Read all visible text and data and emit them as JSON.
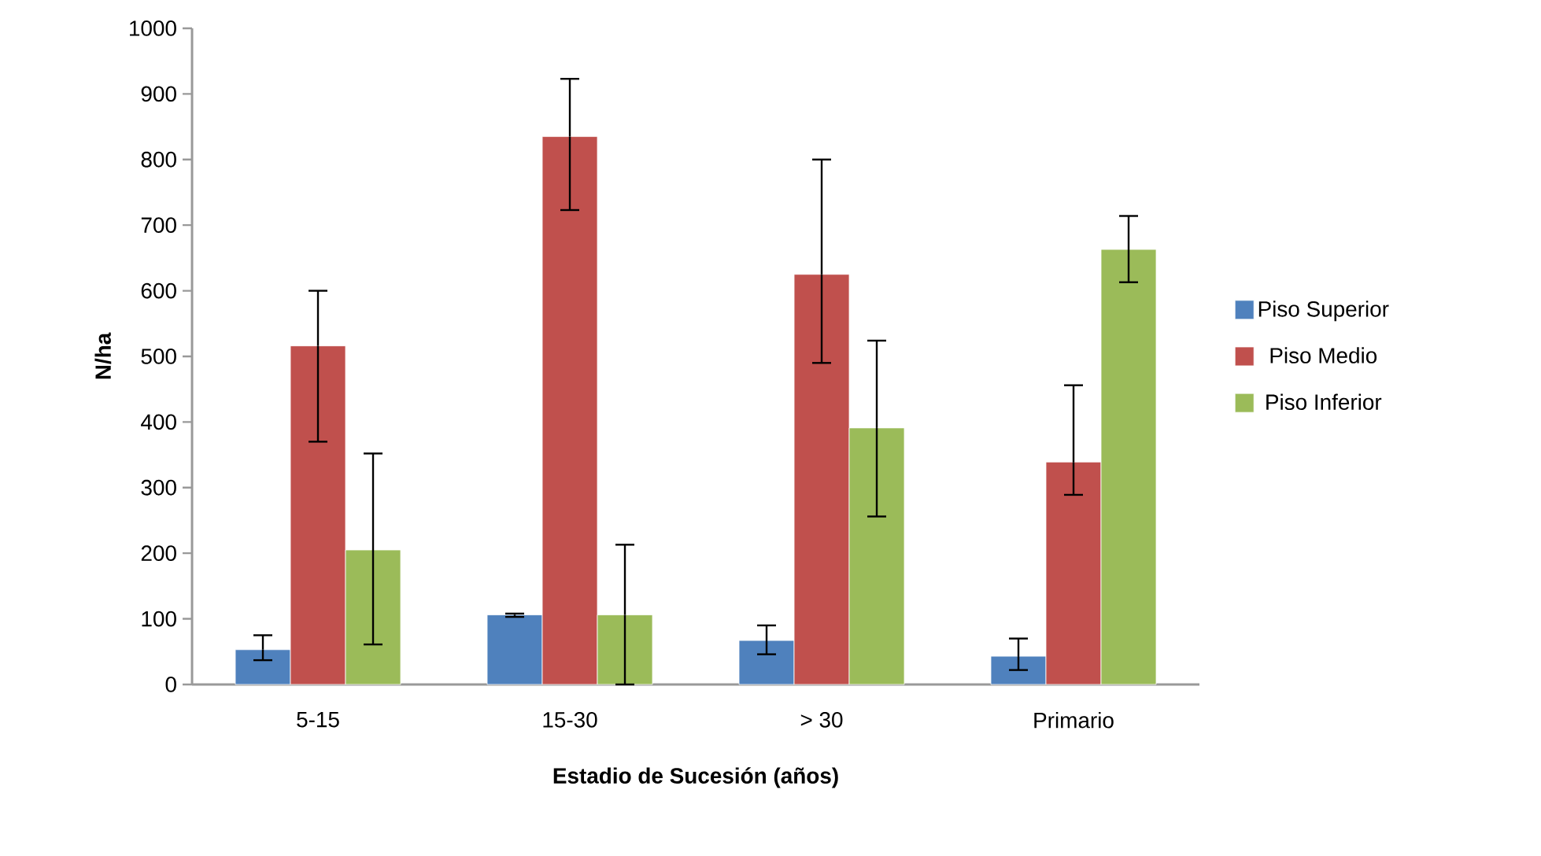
{
  "chart_data": {
    "type": "bar",
    "xlabel": "Estadio de Sucesión (años)",
    "ylabel": "N/ha",
    "categories": [
      "5-15",
      "15-30",
      "> 30",
      "Primario"
    ],
    "series": [
      {
        "name": "Piso Superior",
        "color": "#4f81bd",
        "values": [
          53,
          106,
          67,
          43
        ],
        "errors": [
          [
            37,
            75
          ],
          [
            103,
            108
          ],
          [
            46,
            90
          ],
          [
            22,
            70
          ]
        ]
      },
      {
        "name": "Piso Medio",
        "color": "#c0504d",
        "values": [
          516,
          835,
          625,
          339
        ],
        "errors": [
          [
            370,
            600
          ],
          [
            723,
            923
          ],
          [
            490,
            800
          ],
          [
            289,
            456
          ]
        ]
      },
      {
        "name": "Piso Inferior",
        "color": "#9bbb59",
        "values": [
          205,
          106,
          391,
          663
        ],
        "errors": [
          [
            61,
            352
          ],
          [
            0,
            213
          ],
          [
            256,
            524
          ],
          [
            613,
            714
          ]
        ]
      }
    ],
    "ylim": [
      0,
      1000
    ],
    "yticks": [
      0,
      100,
      200,
      300,
      400,
      500,
      600,
      700,
      800,
      900,
      1000
    ],
    "grid": false,
    "legend": "right"
  }
}
